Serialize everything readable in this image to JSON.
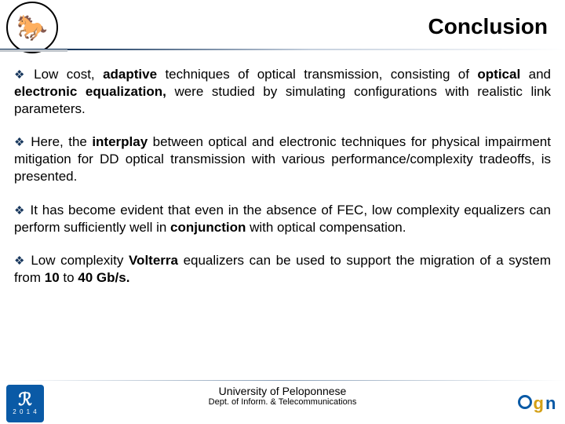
{
  "header": {
    "title": "Conclusion",
    "logo_glyph": "🐎"
  },
  "bullets": [
    {
      "parts": [
        {
          "t": "Low cost, ",
          "b": false
        },
        {
          "t": "adaptive",
          "b": true
        },
        {
          "t": " techniques of optical transmission, consisting of ",
          "b": false
        },
        {
          "t": "optical",
          "b": true
        },
        {
          "t": " and ",
          "b": false
        },
        {
          "t": "electronic equalization,",
          "b": true
        },
        {
          "t": " were studied by simulating configurations with realistic link parameters.",
          "b": false
        }
      ]
    },
    {
      "parts": [
        {
          "t": "Here, the ",
          "b": false
        },
        {
          "t": "interplay",
          "b": true
        },
        {
          "t": " between optical and electronic techniques for physical impairment mitigation for DD optical transmission with various performance/complexity tradeoffs, is presented.",
          "b": false
        }
      ]
    },
    {
      "parts": [
        {
          "t": "It has become evident that even in the absence of FEC, low complexity equalizers can perform sufficiently well in ",
          "b": false
        },
        {
          "t": "conjunction",
          "b": true
        },
        {
          "t": " with optical compensation.",
          "b": false
        }
      ]
    },
    {
      "parts": [
        {
          "t": "Low complexity ",
          "b": false
        },
        {
          "t": "Volterra",
          "b": true
        },
        {
          "t": " equalizers can be used to support the migration of a system from ",
          "b": false
        },
        {
          "t": "10",
          "b": true
        },
        {
          "t": " to ",
          "b": false
        },
        {
          "t": "40 Gb/s.",
          "b": true
        }
      ]
    }
  ],
  "footer": {
    "university": "University of Peloponnese",
    "department": "Dept. of Inform. & Telecommunications",
    "left_logo_year": "2 0 1 4",
    "left_logo_mark": "ℛ",
    "right_logo_letters": {
      "o": "o",
      "g": "g",
      "n": "n"
    }
  },
  "colors": {
    "accent": "#16365c",
    "logo_blue": "#0a5aa6",
    "logo_gold": "#d4a017",
    "background": "#ffffff",
    "text": "#000000"
  },
  "typography": {
    "title_fontsize_pt": 21,
    "body_fontsize_pt": 13,
    "footer_uni_pt": 10,
    "footer_dept_pt": 8,
    "font_family": "Arial"
  },
  "bullet_glyph": "❖"
}
